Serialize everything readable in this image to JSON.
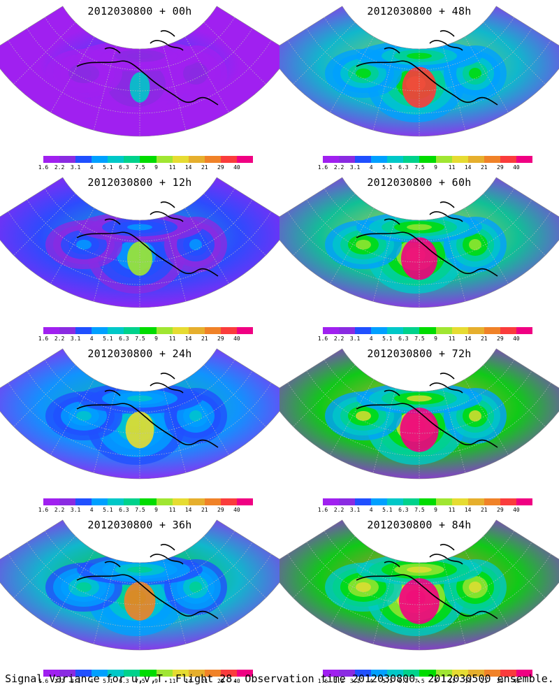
{
  "caption": "Signal Variance for u,v,T. Flight 28. Observation time 2012030800. 2012030500 ensemble.",
  "colorbar": {
    "colors": [
      "#a020f0",
      "#8a2be2",
      "#2050ff",
      "#00a0ff",
      "#00c8c8",
      "#00d28c",
      "#00dc00",
      "#a0e632",
      "#e6dc32",
      "#e6af2d",
      "#f08228",
      "#fa3c3c",
      "#f00082"
    ],
    "labels": [
      "1.6",
      "2.2",
      "3.1",
      "4",
      "5.1",
      "6.3",
      "7.5",
      "9",
      "11",
      "14",
      "21",
      "29",
      "40"
    ]
  },
  "panels": [
    {
      "title": "2012030800 + 00h",
      "level": 0.12
    },
    {
      "title": "2012030800 + 48h",
      "level": 0.62
    },
    {
      "title": "2012030800 + 12h",
      "level": 0.3
    },
    {
      "title": "2012030800 + 60h",
      "level": 0.7
    },
    {
      "title": "2012030800 + 24h",
      "level": 0.42
    },
    {
      "title": "2012030800 + 72h",
      "level": 0.78
    },
    {
      "title": "2012030800 + 36h",
      "level": 0.52
    },
    {
      "title": "2012030800 + 84h",
      "level": 0.85
    }
  ]
}
